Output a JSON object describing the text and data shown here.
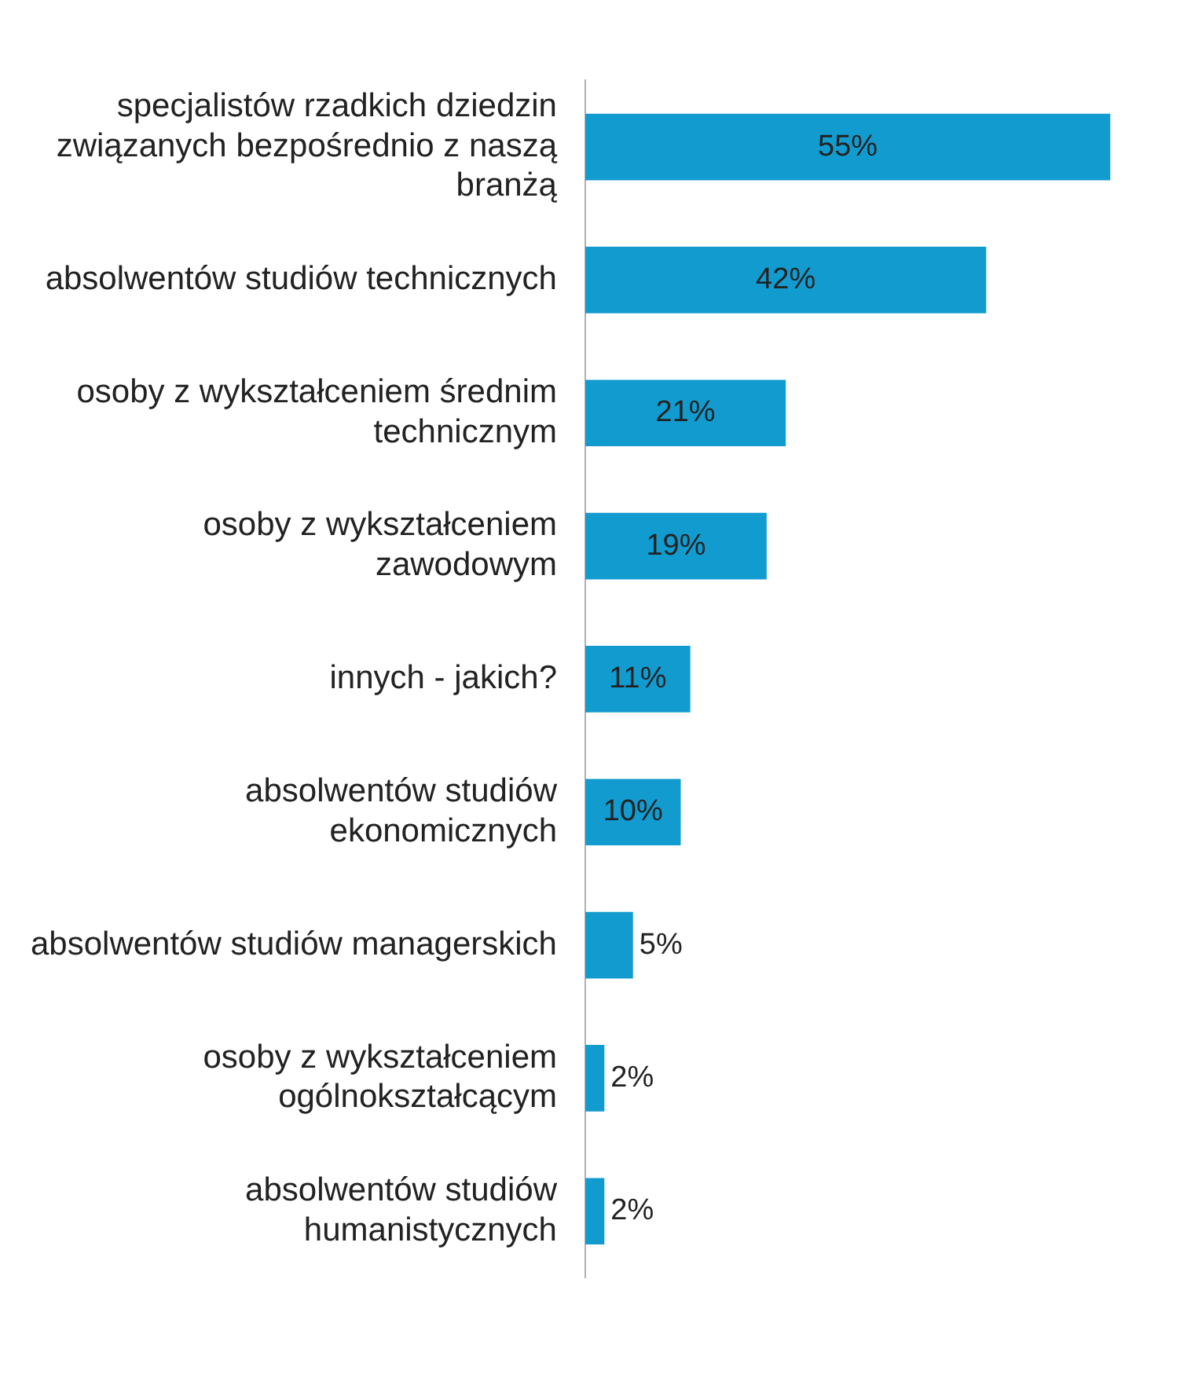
{
  "chart_data": {
    "type": "bar",
    "orientation": "horizontal",
    "categories": [
      "specjalistów rzadkich dziedzin związanych bezpośrednio z naszą branżą",
      "absolwentów studiów technicznych",
      "osoby z wykształceniem średnim technicznym",
      "osoby z wykształceniem zawodowym",
      "innych - jakich?",
      "absolwentów studiów ekonomicznych",
      "absolwentów studiów managerskich",
      "osoby z wykształceniem ogólnokształcącym",
      "absolwentów studiów humanistycznych"
    ],
    "values": [
      55,
      42,
      21,
      19,
      11,
      10,
      5,
      2,
      2
    ],
    "value_labels": [
      "55%",
      "42%",
      "21%",
      "19%",
      "11%",
      "10%",
      "5%",
      "2%",
      "2%"
    ],
    "color": "#129bcf",
    "legend": false
  }
}
